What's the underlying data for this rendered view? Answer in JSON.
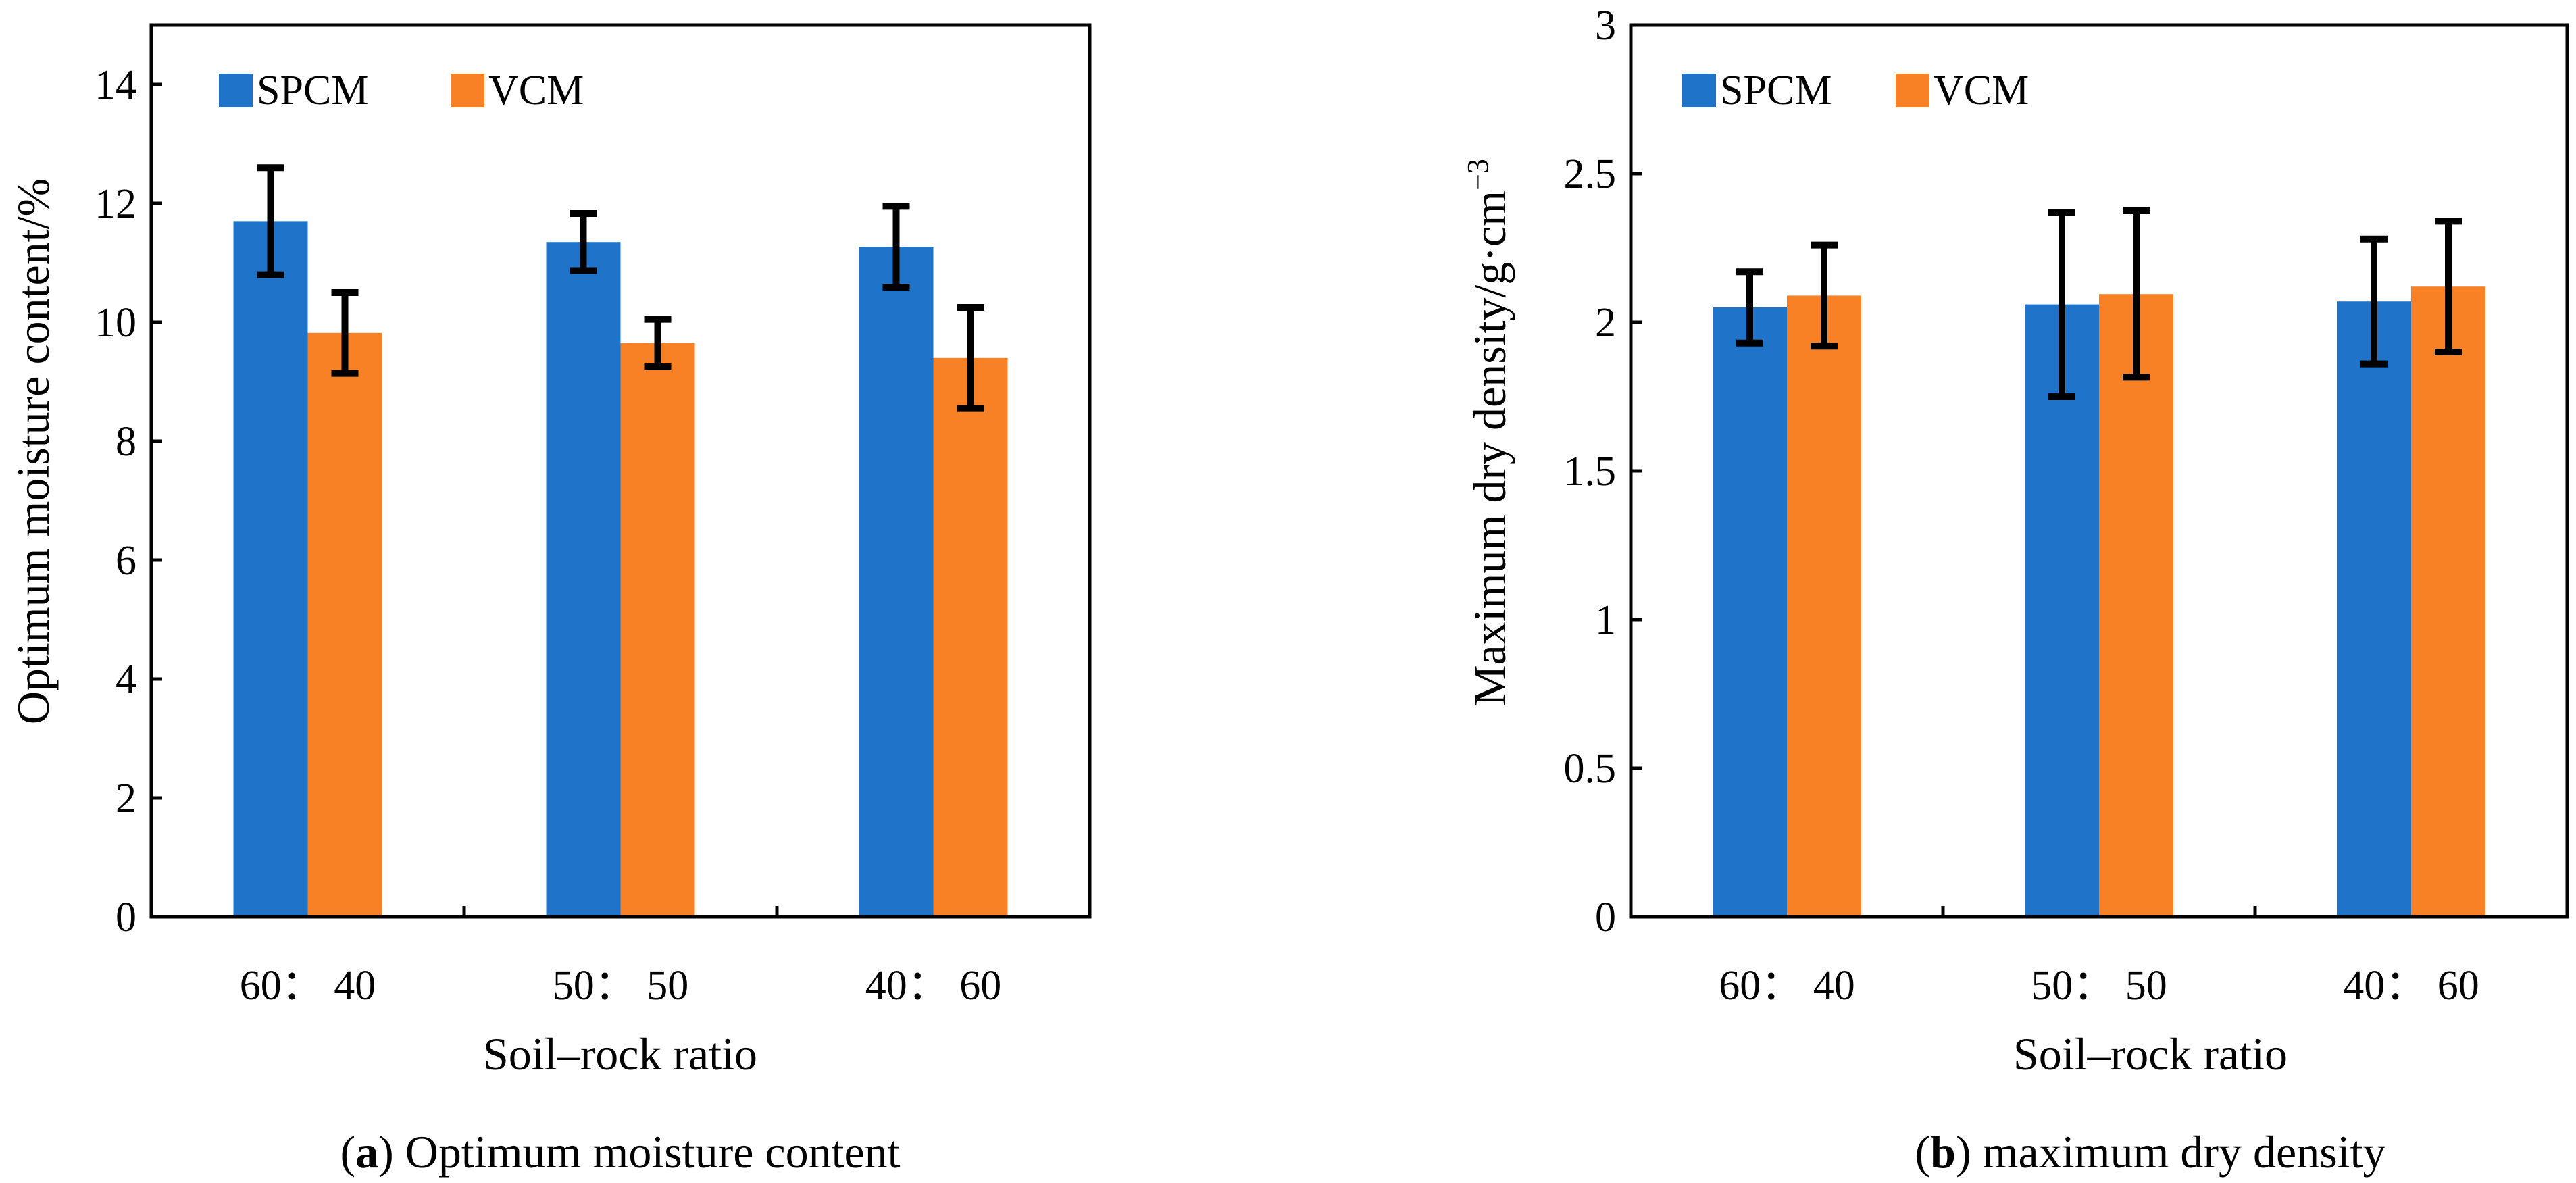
{
  "colors": {
    "spcm": "#1f74c9",
    "vcm": "#f98125",
    "axis": "#000000"
  },
  "chart_data": [
    {
      "type": "bar",
      "categories": [
        "60： 40",
        "50： 50",
        "40： 60"
      ],
      "series": [
        {
          "name": "SPCM",
          "values": [
            11.7,
            11.35,
            11.27
          ],
          "errors": [
            0.9,
            0.48,
            0.68
          ]
        },
        {
          "name": "VCM",
          "values": [
            9.82,
            9.65,
            9.4
          ],
          "errors": [
            0.68,
            0.4,
            0.85
          ]
        }
      ],
      "xlabel": "Soil–rock ratio",
      "ylabel": "Optimum moisture content/%",
      "ylim": [
        0,
        15
      ],
      "yticks": [
        0,
        2,
        4,
        6,
        8,
        10,
        12,
        14
      ],
      "legend": "top-left",
      "caption": {
        "label": "a",
        "text": ") Optimum moisture content"
      }
    },
    {
      "type": "bar",
      "categories": [
        "60： 40",
        "50： 50",
        "40： 60"
      ],
      "series": [
        {
          "name": "SPCM",
          "values": [
            2.05,
            2.06,
            2.07
          ],
          "errors": [
            0.12,
            0.31,
            0.21
          ]
        },
        {
          "name": "VCM",
          "values": [
            2.09,
            2.095,
            2.12
          ],
          "errors": [
            0.17,
            0.28,
            0.22
          ]
        }
      ],
      "xlabel": "Soil–rock ratio",
      "ylabel": "Maximum dry density/g·cm",
      "ylabel_sup": "−3",
      "ylim": [
        0,
        3
      ],
      "yticks": [
        "0",
        "0.5",
        "1",
        "1.5",
        "2",
        "2.5",
        "3"
      ],
      "legend": "top-left",
      "caption": {
        "label": "b",
        "text": ") maximum dry density"
      }
    }
  ]
}
